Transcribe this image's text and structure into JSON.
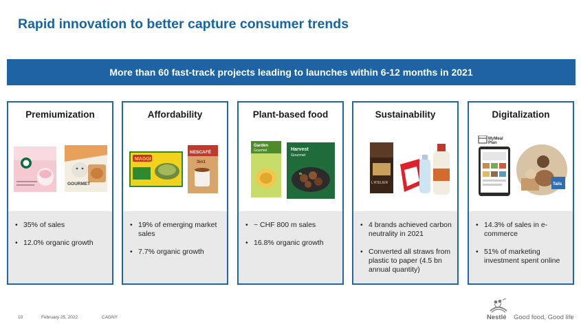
{
  "title": "Rapid innovation to better capture consumer trends",
  "banner": "More than 60 fast-track projects leading to launches within 6-12 months in 2021",
  "cards": [
    {
      "title": "Premiumization",
      "bullets": [
        "35% of sales",
        "12.0% organic growth"
      ],
      "image_desc": "starbucks-pod-box-and-gourmet-cat-food"
    },
    {
      "title": "Affordability",
      "bullets": [
        "19% of emerging market sales",
        "7.7% organic growth"
      ],
      "image_desc": "maggi-seasoning-and-nescafe-sachet"
    },
    {
      "title": "Plant-based food",
      "bullets": [
        "~ CHF 800 m sales",
        "16.8% organic growth"
      ],
      "image_desc": "garden-gourmet-and-harvest-gourmet-packs"
    },
    {
      "title": "Sustainability",
      "bullets": [
        "4 brands achieved carbon neutrality in 2021",
        "Converted all straws from plastic to paper (4.5 bn annual quantity)"
      ],
      "image_desc": "chocolate-bar-bottles-and-paper-straw-pack"
    },
    {
      "title": "Digitalization",
      "bullets": [
        "14.3% of sales in e-commerce",
        "51% of marketing investment spent online"
      ],
      "image_desc": "mymeal-plan-tablet-and-tails-delivery"
    }
  ],
  "product_labels": {
    "gourmet": "GOURMET",
    "nescafe": "NESCAFÉ",
    "nescafe_sub": "3in1",
    "maggi": "MAGGI",
    "garden": "Garden",
    "garden_sub": "Gourmet",
    "harvest": "Harvest",
    "harvest_sub": "Gourmet",
    "latelier": "L'ATELIER",
    "mymeal": "MyMeal",
    "mymeal_sub": "Plan",
    "tails": "Tails"
  },
  "footer": {
    "page_number": "10",
    "date": "February 25, 2022",
    "event": "CAGNY",
    "brand_name": "Nestlé",
    "tagline": "Good food, Good life"
  },
  "colors": {
    "title_blue": "#1565a6",
    "banner_blue": "#1e64a4",
    "card_border": "#1f66a8",
    "card_panel_gray": "#e9e9e9"
  }
}
